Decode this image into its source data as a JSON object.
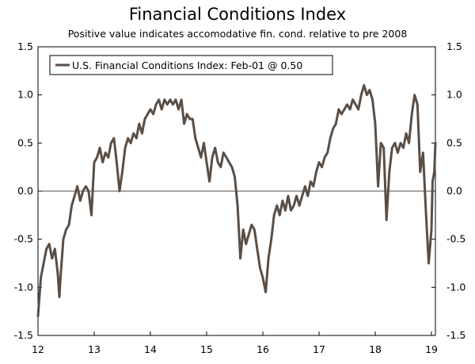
{
  "chart_data": {
    "type": "line",
    "title": "Financial Conditions Index",
    "subtitle": "Positive value indicates accomodative fin. cond. relative to pre 2008",
    "xlabel": "",
    "ylabel": "",
    "xlim": [
      12.0,
      19.07
    ],
    "ylim": [
      -1.5,
      1.5
    ],
    "x_ticks": [
      12,
      13,
      14,
      15,
      16,
      17,
      18,
      19
    ],
    "x_tick_labels": [
      "12",
      "13",
      "14",
      "15",
      "16",
      "17",
      "18",
      "19"
    ],
    "y_ticks": [
      -1.5,
      -1.0,
      -0.5,
      0.0,
      0.5,
      1.0,
      1.5
    ],
    "y_tick_labels": [
      "-1.5",
      "-1.0",
      "-0.5",
      "0.0",
      "0.5",
      "1.0",
      "1.5"
    ],
    "legend_location": "top-left",
    "colors": {
      "series": "#5a4e45",
      "axis": "#000000",
      "zero_line": "#5a4e45"
    },
    "series": [
      {
        "name": "U.S. Financial Conditions Index: Feb-01 @ 0.50",
        "x": [
          12.0,
          12.05,
          12.1,
          12.15,
          12.2,
          12.25,
          12.3,
          12.35,
          12.38,
          12.4,
          12.45,
          12.5,
          12.55,
          12.6,
          12.65,
          12.7,
          12.75,
          12.8,
          12.85,
          12.9,
          12.95,
          13.0,
          13.05,
          13.1,
          13.15,
          13.2,
          13.25,
          13.3,
          13.35,
          13.4,
          13.45,
          13.5,
          13.55,
          13.6,
          13.65,
          13.7,
          13.75,
          13.8,
          13.85,
          13.9,
          13.95,
          14.0,
          14.05,
          14.1,
          14.15,
          14.2,
          14.25,
          14.3,
          14.35,
          14.4,
          14.45,
          14.5,
          14.55,
          14.6,
          14.65,
          14.7,
          14.75,
          14.8,
          14.85,
          14.9,
          14.95,
          15.0,
          15.05,
          15.1,
          15.15,
          15.2,
          15.25,
          15.3,
          15.35,
          15.4,
          15.45,
          15.5,
          15.55,
          15.6,
          15.65,
          15.7,
          15.75,
          15.8,
          15.85,
          15.9,
          15.95,
          16.0,
          16.05,
          16.1,
          16.15,
          16.2,
          16.25,
          16.3,
          16.35,
          16.4,
          16.45,
          16.5,
          16.55,
          16.6,
          16.65,
          16.7,
          16.75,
          16.8,
          16.85,
          16.9,
          16.95,
          17.0,
          17.05,
          17.1,
          17.15,
          17.2,
          17.25,
          17.3,
          17.35,
          17.4,
          17.45,
          17.5,
          17.55,
          17.6,
          17.65,
          17.7,
          17.75,
          17.8,
          17.85,
          17.9,
          17.95,
          18.0,
          18.05,
          18.1,
          18.15,
          18.2,
          18.25,
          18.3,
          18.35,
          18.4,
          18.45,
          18.5,
          18.55,
          18.6,
          18.65,
          18.7,
          18.75,
          18.8,
          18.85,
          18.9,
          18.95,
          19.0,
          19.02,
          19.05,
          19.07
        ],
        "y": [
          -1.3,
          -0.9,
          -0.75,
          -0.6,
          -0.55,
          -0.7,
          -0.6,
          -0.85,
          -1.1,
          -0.9,
          -0.5,
          -0.4,
          -0.35,
          -0.15,
          -0.05,
          0.05,
          -0.1,
          0.0,
          0.05,
          0.0,
          -0.25,
          0.3,
          0.35,
          0.45,
          0.3,
          0.4,
          0.35,
          0.5,
          0.55,
          0.3,
          0.0,
          0.2,
          0.45,
          0.55,
          0.5,
          0.6,
          0.55,
          0.7,
          0.6,
          0.75,
          0.8,
          0.85,
          0.8,
          0.9,
          0.95,
          0.85,
          0.95,
          0.9,
          0.95,
          0.9,
          0.95,
          0.85,
          0.95,
          0.7,
          0.8,
          0.75,
          0.75,
          0.55,
          0.45,
          0.35,
          0.5,
          0.3,
          0.1,
          0.35,
          0.45,
          0.3,
          0.25,
          0.4,
          0.35,
          0.3,
          0.25,
          0.15,
          -0.15,
          -0.7,
          -0.4,
          -0.55,
          -0.45,
          -0.35,
          -0.4,
          -0.6,
          -0.8,
          -0.9,
          -1.05,
          -0.7,
          -0.5,
          -0.25,
          -0.15,
          -0.25,
          -0.1,
          -0.2,
          -0.05,
          -0.2,
          -0.15,
          -0.05,
          -0.15,
          -0.05,
          0.05,
          -0.05,
          0.1,
          0.05,
          0.2,
          0.3,
          0.25,
          0.35,
          0.4,
          0.55,
          0.65,
          0.7,
          0.85,
          0.8,
          0.85,
          0.9,
          0.85,
          0.95,
          0.9,
          0.85,
          1.0,
          1.1,
          1.0,
          1.05,
          0.95,
          0.7,
          0.05,
          0.5,
          0.45,
          -0.3,
          0.2,
          0.45,
          0.5,
          0.4,
          0.5,
          0.45,
          0.6,
          0.5,
          0.8,
          1.0,
          0.9,
          0.2,
          0.4,
          -0.2,
          -0.75,
          -0.4,
          0.1,
          0.2,
          0.5
        ]
      }
    ]
  }
}
